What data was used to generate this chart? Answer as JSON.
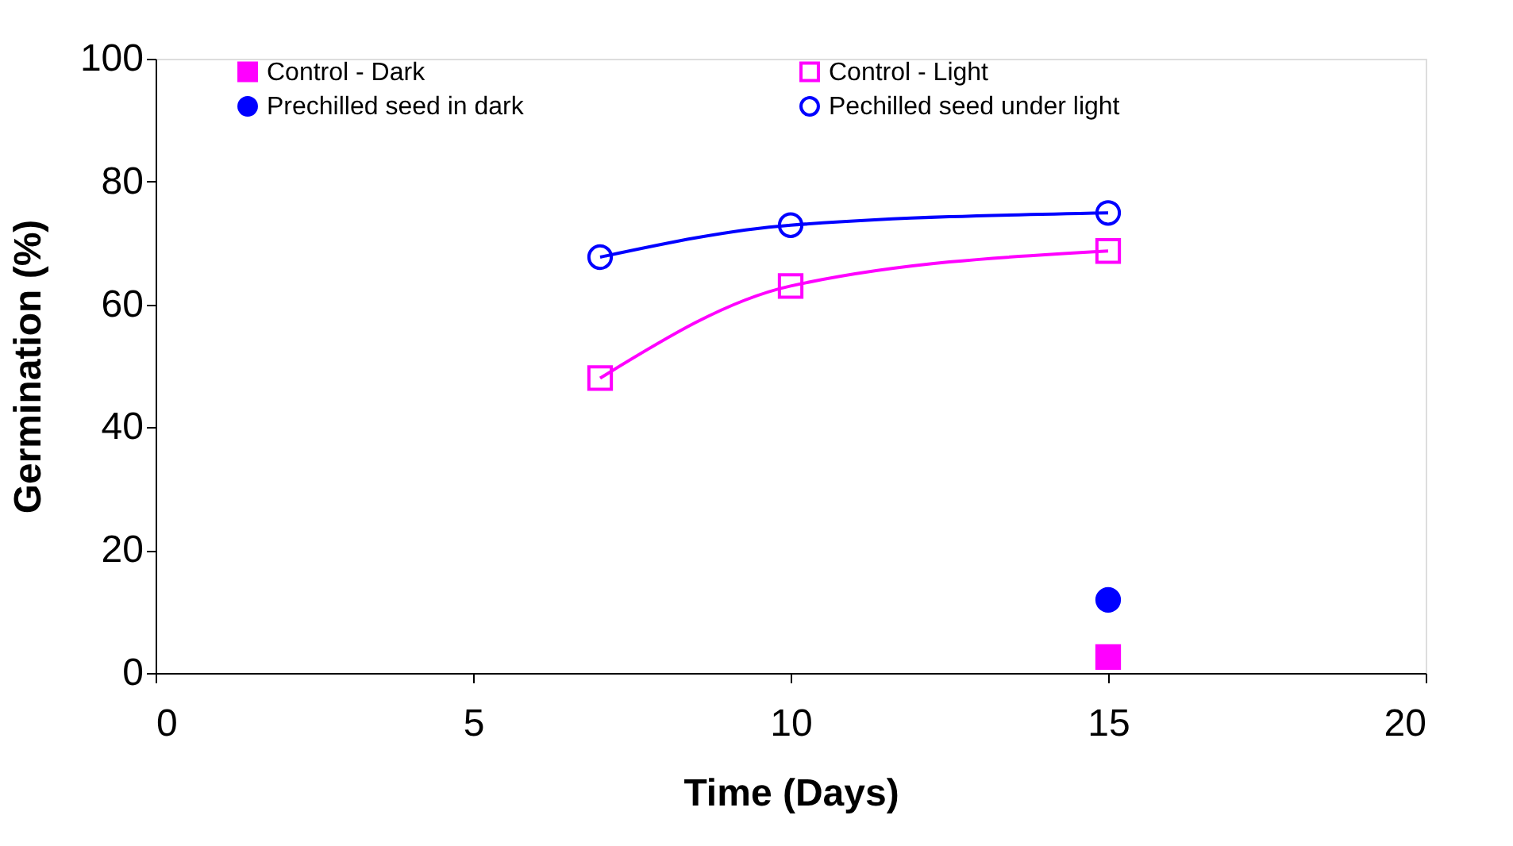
{
  "chart_data": {
    "type": "line",
    "xlabel": "Time (Days)",
    "ylabel": "Germination (%)",
    "xlim": [
      0,
      20
    ],
    "xticks": [
      0,
      5,
      10,
      15,
      20
    ],
    "ylim": [
      0,
      100
    ],
    "yticks": [
      0,
      20,
      40,
      60,
      80,
      100
    ],
    "grid": false,
    "legend": "top",
    "line_style": "solid",
    "series": [
      {
        "name": "Control - Dark",
        "color": "#ff00ff",
        "type": "scatter",
        "marker": "square",
        "x": [
          15
        ],
        "values": [
          2.6
        ]
      },
      {
        "name": "Control - Light",
        "color": "#ff00ff",
        "marker": "square",
        "x": [
          7,
          10,
          15
        ],
        "values": [
          48,
          63,
          68.7
        ]
      },
      {
        "name": "Prechilled seed in dark",
        "color": "#0000ff",
        "type": "scatter",
        "marker": "circle",
        "x": [
          15
        ],
        "values": [
          11.9
        ]
      },
      {
        "name": "Pechilled seed under light",
        "color": "#0000ff",
        "marker": "circle",
        "x": [
          7,
          10,
          15
        ],
        "values": [
          67.7,
          72.9,
          74.9
        ]
      }
    ]
  }
}
